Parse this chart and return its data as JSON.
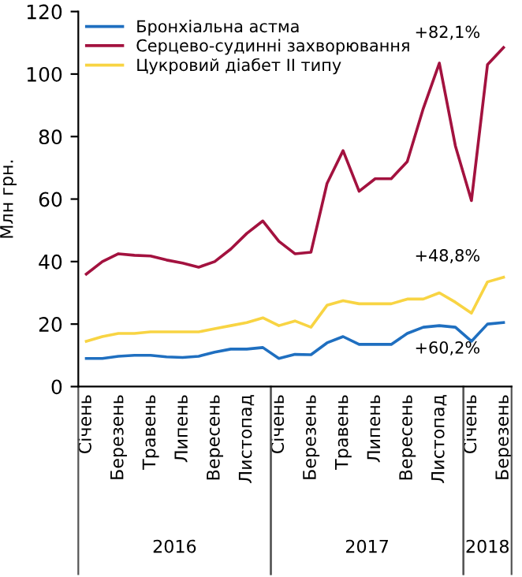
{
  "chart_data": {
    "type": "line",
    "ylabel": "Млн грн.",
    "categories": [
      "Січень",
      null,
      "Березень",
      null,
      "Травень",
      null,
      "Липень",
      null,
      "Вересень",
      null,
      "Листопад",
      null,
      "Січень",
      null,
      "Березень",
      null,
      "Травень",
      null,
      "Липень",
      null,
      "Вересень",
      null,
      "Листопад",
      null,
      "Січень",
      null,
      "Березень"
    ],
    "series": [
      {
        "name": "Бронхіальна астма",
        "color": "#1f6fc0",
        "values": [
          9,
          9,
          9.7,
          10,
          10,
          9.5,
          9.3,
          9.7,
          11,
          12,
          12,
          12.5,
          9,
          10.3,
          10.2,
          14,
          16,
          13.5,
          13.5,
          13.5,
          17,
          19,
          19.5,
          19,
          14.5,
          20,
          20.5
        ]
      },
      {
        "name": "Серцево-судинні захворювання",
        "color": "#a3123f",
        "values": [
          36,
          40,
          42.5,
          42,
          41.8,
          40.5,
          39.5,
          38.2,
          40,
          44,
          49,
          53,
          46.5,
          42.5,
          43,
          65,
          75.5,
          62.5,
          66.5,
          66.5,
          72,
          89,
          103.5,
          77,
          59.5,
          103,
          108.5
        ]
      },
      {
        "name": "Цукровий діабет II типу",
        "color": "#f8d443",
        "values": [
          14.5,
          16,
          17,
          17,
          17.5,
          17.5,
          17.5,
          17.5,
          18.5,
          19.5,
          20.5,
          22,
          19.5,
          21,
          19,
          26,
          27.5,
          26.5,
          26.5,
          26.5,
          28,
          28,
          30,
          27,
          23.5,
          33.5,
          35
        ]
      }
    ],
    "annotations": [
      "+82,1%",
      "+48,8%",
      "+60,2%",
      "2016",
      "2017",
      "2018"
    ],
    "ylim": [
      0,
      120
    ],
    "yticks": [
      0,
      20,
      40,
      60,
      80,
      100,
      120
    ],
    "grid": false,
    "legend": "top left",
    "marker": "none",
    "line_style": "solid"
  }
}
